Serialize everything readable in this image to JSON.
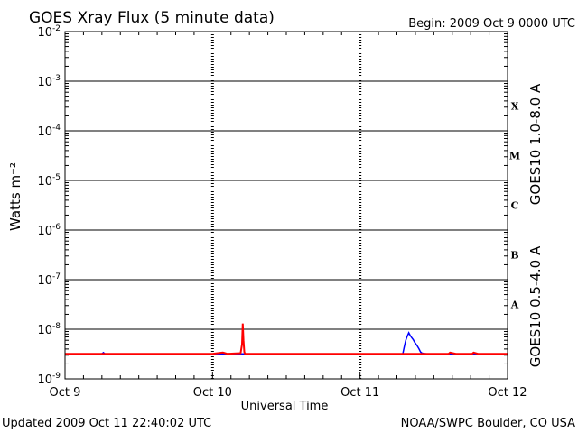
{
  "header": {
    "title": "GOES Xray Flux (5 minute data)",
    "begin": "Begin:  2009 Oct 9 0000 UTC"
  },
  "footer": {
    "updated": "Updated 2009 Oct 11 22:40:02 UTC",
    "credit": "NOAA/SWPC Boulder, CO USA"
  },
  "colors": {
    "long_channel": "#ff0000",
    "short_channel": "#0000ff",
    "axes": "#000000"
  },
  "chart_data": {
    "type": "line",
    "title": "GOES Xray Flux (5 minute data)",
    "xlabel": "Universal Time",
    "ylabel": "Watts m⁻²",
    "yscale": "log",
    "ylim": [
      1e-09,
      0.01
    ],
    "xlim": [
      0,
      3
    ],
    "x_unit": "days since 2009 Oct 9 0000 UTC",
    "x_ticks": [
      {
        "x": 0,
        "label": "Oct 9"
      },
      {
        "x": 1,
        "label": "Oct 10"
      },
      {
        "x": 2,
        "label": "Oct 11"
      },
      {
        "x": 3,
        "label": "Oct 12"
      }
    ],
    "y_ticks": [
      {
        "exp": -9,
        "label": "10",
        "sup": "-9"
      },
      {
        "exp": -8,
        "label": "10",
        "sup": "-8"
      },
      {
        "exp": -7,
        "label": "10",
        "sup": "-7"
      },
      {
        "exp": -6,
        "label": "10",
        "sup": "-6"
      },
      {
        "exp": -5,
        "label": "10",
        "sup": "-5"
      },
      {
        "exp": -4,
        "label": "10",
        "sup": "-4"
      },
      {
        "exp": -3,
        "label": "10",
        "sup": "-3"
      },
      {
        "exp": -2,
        "label": "10",
        "sup": "-2"
      }
    ],
    "flare_classes": [
      {
        "label": "A",
        "exp": -8
      },
      {
        "label": "B",
        "exp": -7
      },
      {
        "label": "C",
        "exp": -6
      },
      {
        "label": "M",
        "exp": -5
      },
      {
        "label": "X",
        "exp": -4
      }
    ],
    "grid": "horizontal lines at each decade; dotted vertical day separators",
    "series": [
      {
        "name": "GOES10 1.0-8.0 A",
        "color": "#ff0000",
        "x": [
          0,
          0.5,
          1.0,
          1.07,
          1.1,
          1.19,
          1.2,
          1.205,
          1.21,
          1.215,
          1.22,
          1.3,
          1.6,
          2.0,
          2.5,
          2.6,
          2.61,
          2.65,
          2.76,
          2.77,
          2.8,
          3.0
        ],
        "y": [
          3.2e-09,
          3.2e-09,
          3.2e-09,
          3.4e-09,
          3.2e-09,
          3.3e-09,
          5e-09,
          1.3e-08,
          6e-09,
          3.5e-09,
          3.2e-09,
          3.2e-09,
          3.2e-09,
          3.2e-09,
          3.2e-09,
          3.2e-09,
          3.4e-09,
          3.2e-09,
          3.2e-09,
          3.4e-09,
          3.2e-09,
          3.2e-09
        ]
      },
      {
        "name": "GOES10 0.5-4.0 A",
        "color": "#0000ff",
        "x": [
          0,
          0.25,
          0.26,
          0.27,
          1.0,
          2.0,
          2.29,
          2.3,
          2.31,
          2.32,
          2.33,
          2.34,
          2.35,
          2.36,
          2.37,
          2.38,
          2.39,
          2.4,
          2.41,
          2.42,
          2.45,
          3.0
        ],
        "y": [
          3.2e-09,
          3.2e-09,
          3.4e-09,
          3.2e-09,
          3.2e-09,
          3.2e-09,
          3.2e-09,
          4.5e-09,
          6e-09,
          7.2e-09,
          8.5e-09,
          7.5e-09,
          6.8e-09,
          6.2e-09,
          5.5e-09,
          5e-09,
          4.5e-09,
          4e-09,
          3.5e-09,
          3.3e-09,
          3.2e-09,
          3.2e-09
        ]
      }
    ]
  }
}
